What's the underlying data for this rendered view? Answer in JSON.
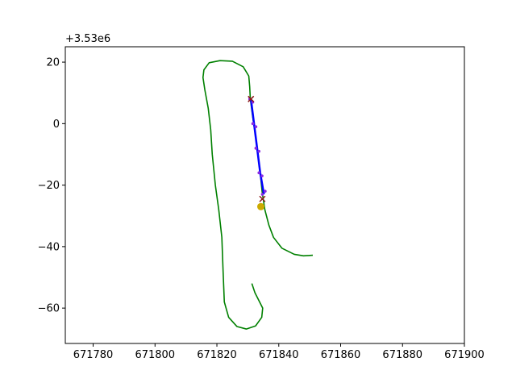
{
  "chart_data": {
    "type": "line",
    "offset_text": "+3.53e6",
    "y_offset": 3530000,
    "xlim": [
      671771,
      671900
    ],
    "ylim": [
      -71.5,
      25
    ],
    "x_ticks": [
      671780,
      671800,
      671820,
      671840,
      671860,
      671880,
      671900
    ],
    "x_tick_labels": [
      "671780",
      "671800",
      "671820",
      "671840",
      "671860",
      "671880",
      "671900"
    ],
    "y_ticks": [
      20,
      0,
      -20,
      -40,
      -60
    ],
    "y_tick_labels": [
      "20",
      "0",
      "−20",
      "−40",
      "−60"
    ],
    "grid": false,
    "colors": {
      "track": "#008000",
      "segment": "#0000ff",
      "markers": "#8b1a1a",
      "vehicle": "#ccaa00",
      "scatter": "#8a2be2"
    },
    "series": [
      {
        "kind": "line",
        "color": "#008000",
        "points": [
          [
            671831.3,
            -52
          ],
          [
            671832.3,
            -55
          ],
          [
            671833.8,
            -58
          ],
          [
            671834.8,
            -60
          ],
          [
            671834.5,
            -63
          ],
          [
            671832.5,
            -65.8
          ],
          [
            671829.5,
            -66.8
          ],
          [
            671826.5,
            -66
          ],
          [
            671823.8,
            -63
          ],
          [
            671822.4,
            -58
          ],
          [
            671822.0,
            -48
          ],
          [
            671821.6,
            -37
          ],
          [
            671820.6,
            -28
          ],
          [
            671819.5,
            -20
          ],
          [
            671818.5,
            -10
          ],
          [
            671818.0,
            -2
          ],
          [
            671817.2,
            5
          ],
          [
            671816.1,
            11
          ],
          [
            671815.5,
            15
          ],
          [
            671815.8,
            17.5
          ],
          [
            671817.5,
            19.8
          ],
          [
            671821,
            20.5
          ],
          [
            671825,
            20.3
          ],
          [
            671828.5,
            18.5
          ],
          [
            671830.3,
            15.5
          ],
          [
            671830.6,
            12
          ],
          [
            671830.8,
            8
          ],
          [
            671831.6,
            2
          ],
          [
            671832.5,
            -4
          ],
          [
            671833.3,
            -10
          ],
          [
            671834.0,
            -16
          ],
          [
            671834.6,
            -22
          ],
          [
            671835.5,
            -28
          ],
          [
            671836.8,
            -33
          ],
          [
            671838.3,
            -37
          ],
          [
            671841,
            -40.5
          ],
          [
            671845,
            -42.5
          ],
          [
            671848,
            -43
          ],
          [
            671851,
            -42.8
          ]
        ]
      },
      {
        "kind": "line",
        "color": "#0000ff",
        "points": [
          [
            671831.0,
            8
          ],
          [
            671832.0,
            0
          ],
          [
            671833.0,
            -8
          ],
          [
            671834.0,
            -16
          ],
          [
            671835.2,
            -23
          ]
        ]
      },
      {
        "kind": "scatter",
        "color": "#8a2be2",
        "points": [
          [
            671830.6,
            8
          ],
          [
            671831.6,
            0
          ],
          [
            671832.6,
            -8
          ],
          [
            671833.6,
            -16
          ],
          [
            671834.7,
            -23
          ],
          [
            671831.6,
            7
          ],
          [
            671832.6,
            -1
          ],
          [
            671833.6,
            -9
          ],
          [
            671834.6,
            -17
          ],
          [
            671835.6,
            -22
          ]
        ]
      },
      {
        "kind": "x-marker",
        "color": "#8b1a1a",
        "points": [
          [
            671831.0,
            8
          ],
          [
            671834.7,
            -24.5
          ]
        ]
      },
      {
        "kind": "dot",
        "color": "#ccaa00",
        "points": [
          [
            671834.2,
            -27
          ]
        ]
      }
    ]
  }
}
